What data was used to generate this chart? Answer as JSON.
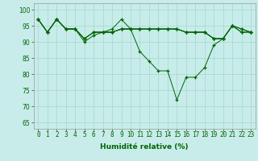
{
  "xlabel": "Humidité relative (%)",
  "ylabel_ticks": [
    65,
    70,
    75,
    80,
    85,
    90,
    95,
    100
  ],
  "xlim": [
    -0.5,
    23.5
  ],
  "ylim": [
    63,
    102
  ],
  "bg_color": "#c8ecea",
  "grid_color": "#a0d8d0",
  "line_color": "#006600",
  "marker": "+",
  "lines": [
    [
      97,
      93,
      97,
      94,
      94,
      91,
      93,
      93,
      93,
      94,
      94,
      94,
      94,
      94,
      94,
      94,
      93,
      93,
      93,
      91,
      91,
      95,
      93,
      93
    ],
    [
      97,
      93,
      97,
      94,
      94,
      90,
      92,
      93,
      94,
      97,
      94,
      87,
      84,
      81,
      81,
      72,
      79,
      79,
      82,
      89,
      91,
      95,
      94,
      93
    ],
    [
      97,
      93,
      97,
      94,
      94,
      91,
      93,
      93,
      93,
      94,
      94,
      94,
      94,
      94,
      94,
      94,
      93,
      93,
      93,
      91,
      91,
      95,
      93,
      93
    ],
    [
      97,
      93,
      97,
      94,
      94,
      91,
      93,
      93,
      93,
      94,
      94,
      94,
      94,
      94,
      94,
      94,
      93,
      93,
      93,
      91,
      91,
      95,
      94,
      93
    ]
  ],
  "xtick_labels": [
    "0",
    "1",
    "2",
    "3",
    "4",
    "5",
    "6",
    "7",
    "8",
    "9",
    "10",
    "11",
    "12",
    "13",
    "14",
    "15",
    "16",
    "17",
    "18",
    "19",
    "20",
    "21",
    "22",
    "23"
  ],
  "xlabel_fontsize": 6.5,
  "tick_fontsize": 5.5
}
